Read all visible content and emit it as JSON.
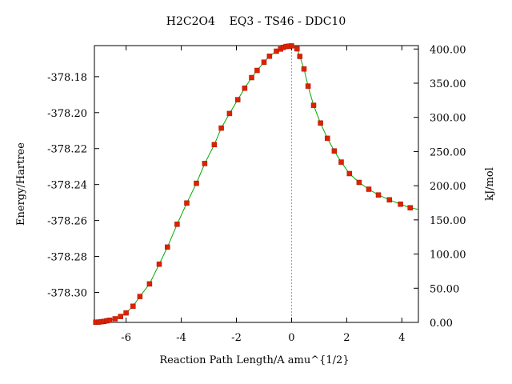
{
  "chart_data": {
    "type": "line",
    "title": "H2C2O4    EQ3 - TS46 - DDC10",
    "xlabel": "Reaction Path Length/A amu^{1/2}",
    "ylabel": "Energy/Hartree",
    "y2label": "kJ/mol",
    "xlim": [
      -7.15,
      4.6
    ],
    "ylim": [
      -378.3167,
      -378.1627
    ],
    "y2lim": [
      0,
      405
    ],
    "x_ticks": [
      -6,
      -4,
      -2,
      0,
      2,
      4
    ],
    "x_tick_labels": [
      "-6",
      "-4",
      "-2",
      "0",
      "2",
      "4"
    ],
    "y_ticks": [
      -378.3,
      -378.28,
      -378.26,
      -378.24,
      -378.22,
      -378.2,
      -378.18
    ],
    "y_tick_labels": [
      "-378.30",
      "-378.28",
      "-378.26",
      "-378.24",
      "-378.22",
      "-378.20",
      "-378.18"
    ],
    "y2_ticks": [
      0,
      50,
      100,
      150,
      200,
      250,
      300,
      350,
      400
    ],
    "y2_tick_labels": [
      "0.00",
      "50.00",
      "100.00",
      "150.00",
      "200.00",
      "250.00",
      "300.00",
      "350.00",
      "400.00"
    ],
    "ts_line_x": 0,
    "grid": false,
    "colors": {
      "line": "#00aa00",
      "marker": "#dd2200",
      "ts_line": "#999999"
    },
    "series": [
      {
        "x": [
          -7.1,
          -7.0,
          -6.9,
          -6.8,
          -6.7,
          -6.6,
          -6.4,
          -6.2,
          -6.0,
          -5.75,
          -5.5,
          -5.15,
          -4.8,
          -4.5,
          -4.15,
          -3.8,
          -3.45,
          -3.15,
          -2.8,
          -2.55,
          -2.25,
          -1.95,
          -1.7,
          -1.45,
          -1.25,
          -1.0,
          -0.8,
          -0.55,
          -0.4,
          -0.3,
          -0.2,
          -0.1,
          0.0,
          0.2,
          0.3,
          0.45,
          0.6,
          0.8,
          1.05,
          1.3,
          1.55,
          1.8,
          2.1,
          2.45,
          2.8,
          3.15,
          3.55,
          3.95,
          4.3
        ],
        "y": [
          -378.3166,
          -378.3165,
          -378.3163,
          -378.3161,
          -378.3158,
          -378.3155,
          -378.3147,
          -378.3134,
          -378.3114,
          -378.3077,
          -378.3023,
          -378.2953,
          -378.2843,
          -378.2748,
          -378.2621,
          -378.2503,
          -378.2393,
          -378.2283,
          -378.2178,
          -378.2086,
          -378.2005,
          -378.1928,
          -378.1864,
          -378.1805,
          -378.1765,
          -378.1719,
          -378.1686,
          -378.1658,
          -378.1646,
          -378.1637,
          -378.1632,
          -378.163,
          -378.1629,
          -378.1645,
          -378.1687,
          -378.1757,
          -378.1852,
          -378.1959,
          -378.2058,
          -378.2143,
          -378.2213,
          -378.2275,
          -378.2339,
          -378.2388,
          -378.2426,
          -378.2458,
          -378.2485,
          -378.2509,
          -378.2529
        ]
      }
    ]
  }
}
